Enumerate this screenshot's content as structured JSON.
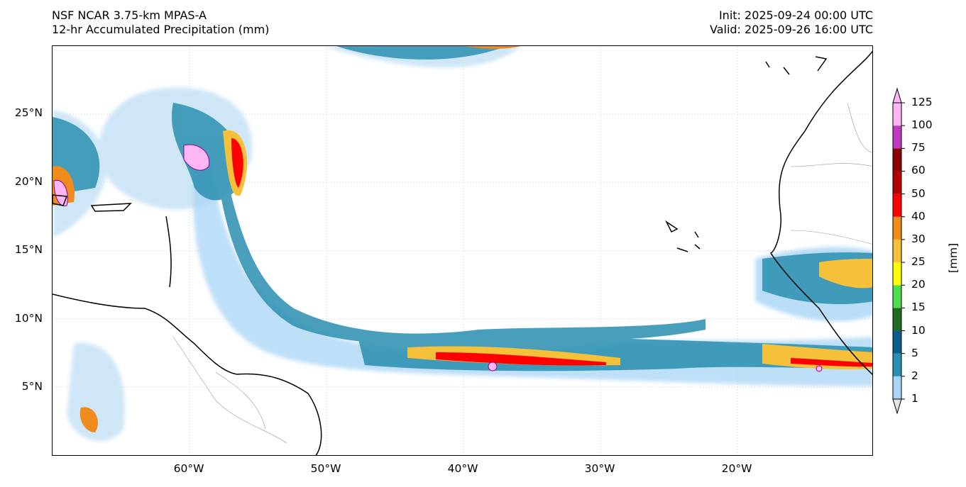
{
  "header": {
    "model": "NSF NCAR 3.75-km MPAS-A",
    "field": "12-hr Accumulated Precipitation (mm)",
    "init": "Init: 2025-09-24 00:00 UTC",
    "valid": "Valid: 2025-09-26 16:00 UTC"
  },
  "axes": {
    "lat_labels": [
      "25°N",
      "20°N",
      "15°N",
      "10°N",
      "5°N"
    ],
    "lon_labels": [
      "60°W",
      "50°W",
      "40°W",
      "30°W",
      "20°W"
    ],
    "lon_range": [
      -70,
      -10
    ],
    "lat_range": [
      0,
      30
    ]
  },
  "colorbar": {
    "unit": "[mm]",
    "levels": [
      "1",
      "2",
      "5",
      "10",
      "15",
      "20",
      "25",
      "30",
      "40",
      "50",
      "60",
      "75",
      "100",
      "125"
    ],
    "colors": [
      "#e5e5e5",
      "#a8d4f5",
      "#2a8fb0",
      "#0b5c8c",
      "#1f6b1f",
      "#4fdc4f",
      "#ffff00",
      "#f5c13a",
      "#f08c1e",
      "#ff0000",
      "#b00000",
      "#8b0000",
      "#c03ac0",
      "#ffb6f5"
    ]
  },
  "features": {
    "precip_fill_color": "#a8d4f5",
    "heavy_color": "#ff0000",
    "extreme_color": "#ffb6f5",
    "coastline_color": "#000000",
    "border_color": "#999999"
  }
}
